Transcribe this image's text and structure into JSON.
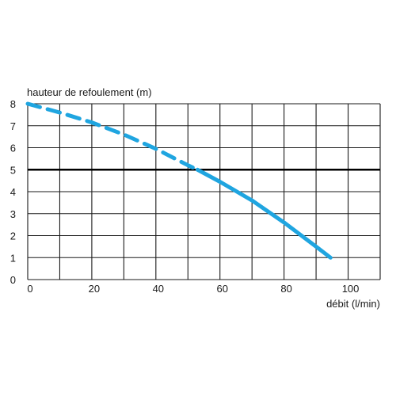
{
  "chart_data": {
    "type": "line",
    "ylabel": "hauteur de refoulement (m)",
    "xlabel": "débit (l/min)",
    "xlim": [
      0,
      110
    ],
    "ylim": [
      0,
      8
    ],
    "x_ticks": [
      "0",
      "20",
      "40",
      "60",
      "80",
      "100"
    ],
    "y_ticks": [
      "0",
      "1",
      "2",
      "3",
      "4",
      "5",
      "6",
      "7",
      "8"
    ],
    "x_grid_step": 10,
    "y_grid_step": 1,
    "grid": true,
    "reference_line_y": 5,
    "series": [
      {
        "color": "#1fa5e0",
        "segments": [
          {
            "style": "dashed",
            "x": [
              0,
              10,
              20,
              30,
              40,
              50,
              53
            ],
            "y": [
              8.0,
              7.6,
              7.15,
              6.6,
              5.95,
              5.2,
              5.0
            ]
          },
          {
            "style": "solid",
            "x": [
              53,
              60,
              70,
              80,
              90,
              94.5
            ],
            "y": [
              5.0,
              4.45,
              3.6,
              2.6,
              1.5,
              1.0
            ]
          }
        ]
      }
    ]
  }
}
